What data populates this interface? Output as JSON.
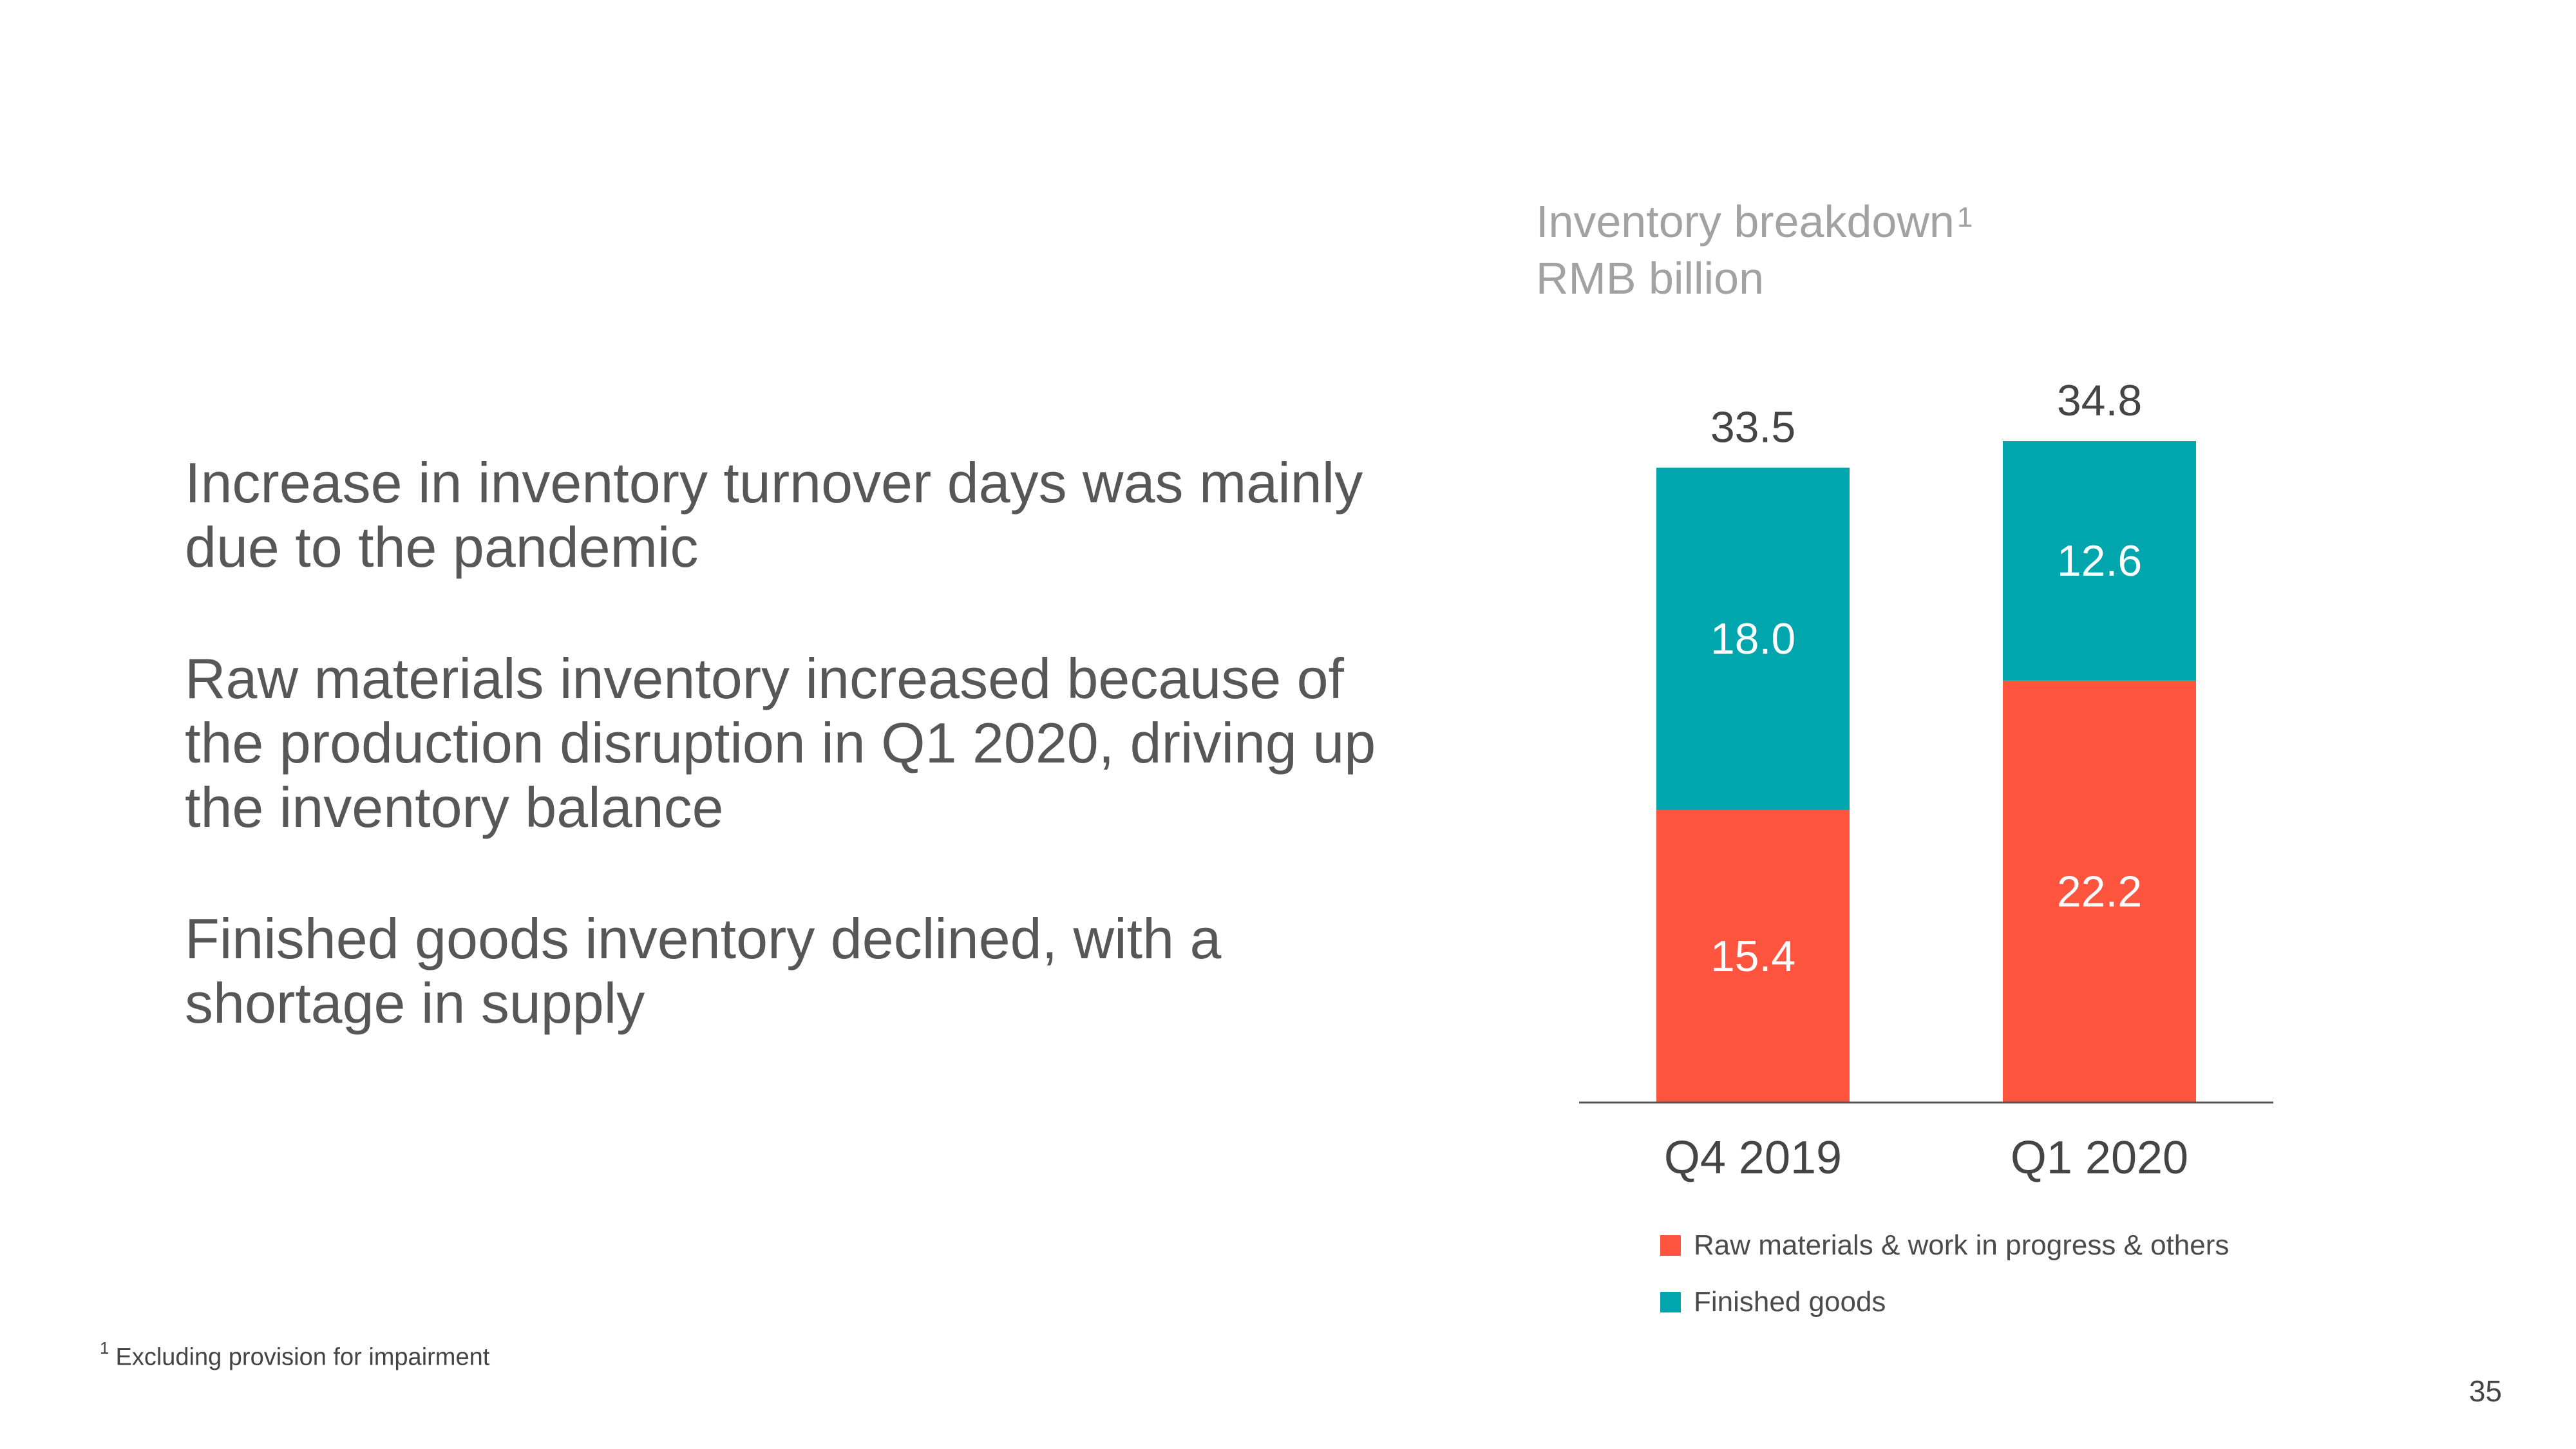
{
  "bullets": [
    "Increase in inventory turnover days was mainly due to the pandemic",
    "Raw materials inventory increased because of the production disruption in Q1 2020, driving up the inventory balance",
    "Finished goods inventory declined, with a shortage in supply"
  ],
  "chart_data": {
    "type": "bar",
    "stacked": true,
    "title": "Inventory breakdown",
    "title_footnote_marker": "1",
    "subtitle": "RMB billion",
    "categories": [
      "Q4 2019",
      "Q1 2020"
    ],
    "series": [
      {
        "name": "Raw materials & work in progress & others",
        "values": [
          15.4,
          22.2
        ],
        "color": "#ff543e"
      },
      {
        "name": "Finished goods",
        "values": [
          18.0,
          12.6
        ],
        "color": "#00a6ad"
      }
    ],
    "totals": [
      33.5,
      34.8
    ],
    "xlabel": "",
    "ylabel": "",
    "ylim": [
      0,
      34.8
    ],
    "grid": false,
    "legend_position": "bottom"
  },
  "footnote": {
    "marker": "1",
    "text": "Excluding provision for impairment"
  },
  "page_number": "35",
  "colors": {
    "raw_materials": "#ff543e",
    "finished_goods": "#00a6ad",
    "text": "#575757",
    "title": "#a2a2a2"
  }
}
